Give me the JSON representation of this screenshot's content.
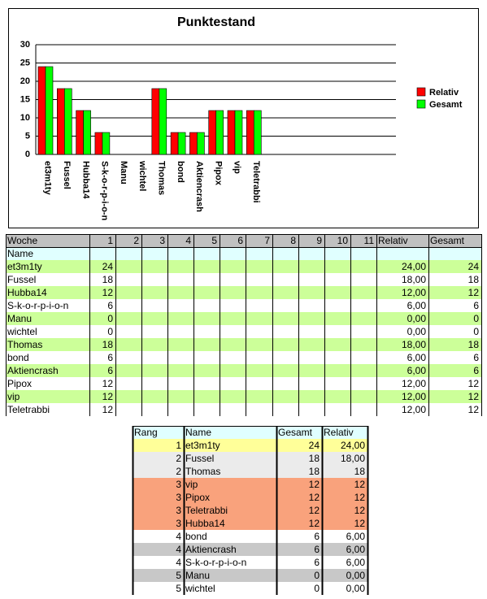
{
  "chart_data": {
    "type": "bar",
    "title": "Punktestand",
    "categories": [
      "et3m1ty",
      "Fussel",
      "Hubba14",
      "S-k-o-r-p-i-o-n",
      "Manu",
      "wichtel",
      "Thomas",
      "bond",
      "Aktiencrash",
      "Pipox",
      "vip",
      "Teletrabbi"
    ],
    "series": [
      {
        "name": "Relativ",
        "color": "#ff0000",
        "values": [
          24,
          18,
          12,
          6,
          0,
          0,
          18,
          6,
          6,
          12,
          12,
          12
        ]
      },
      {
        "name": "Gesamt",
        "color": "#00ff00",
        "values": [
          24,
          18,
          12,
          6,
          0,
          0,
          18,
          6,
          6,
          12,
          12,
          12
        ]
      }
    ],
    "ylim": [
      0,
      30
    ],
    "yticks": [
      0,
      5,
      10,
      15,
      20,
      25,
      30
    ],
    "grid": true,
    "legend": "right"
  },
  "table": {
    "header": [
      "Woche",
      1,
      2,
      3,
      4,
      5,
      6,
      7,
      8,
      9,
      10,
      11,
      "Relativ",
      "Gesamt"
    ],
    "subheader": "Name",
    "rows": [
      {
        "name": "et3m1ty",
        "week": 24,
        "relativ": "24,00",
        "gesamt": 24
      },
      {
        "name": "Fussel",
        "week": 18,
        "relativ": "18,00",
        "gesamt": 18
      },
      {
        "name": "Hubba14",
        "week": 12,
        "relativ": "12,00",
        "gesamt": 12
      },
      {
        "name": "S-k-o-r-p-i-o-n",
        "week": 6,
        "relativ": "6,00",
        "gesamt": 6
      },
      {
        "name": "Manu",
        "week": 0,
        "relativ": "0,00",
        "gesamt": 0
      },
      {
        "name": "wichtel",
        "week": 0,
        "relativ": "0,00",
        "gesamt": 0
      },
      {
        "name": "Thomas",
        "week": 18,
        "relativ": "18,00",
        "gesamt": 18
      },
      {
        "name": "bond",
        "week": 6,
        "relativ": "6,00",
        "gesamt": 6
      },
      {
        "name": "Aktiencrash",
        "week": 6,
        "relativ": "6,00",
        "gesamt": 6
      },
      {
        "name": "Pipox",
        "week": 12,
        "relativ": "12,00",
        "gesamt": 12
      },
      {
        "name": "vip",
        "week": 12,
        "relativ": "12,00",
        "gesamt": 12
      },
      {
        "name": "Teletrabbi",
        "week": 12,
        "relativ": "12,00",
        "gesamt": 12
      }
    ]
  },
  "ranking": {
    "header": [
      "Rang",
      "Name",
      "Gesamt",
      "Relativ"
    ],
    "rows": [
      [
        1,
        "et3m1ty",
        24,
        "24,00"
      ],
      [
        2,
        "Fussel",
        18,
        "18,00"
      ],
      [
        2,
        "Thomas",
        18,
        "18"
      ],
      [
        3,
        "vip",
        12,
        "12"
      ],
      [
        3,
        "Pipox",
        12,
        "12"
      ],
      [
        3,
        "Teletrabbi",
        12,
        "12"
      ],
      [
        3,
        "Hubba14",
        12,
        "12"
      ],
      [
        4,
        "bond",
        6,
        "6,00"
      ],
      [
        4,
        "Aktiencrash",
        6,
        "6,00"
      ],
      [
        4,
        "S-k-o-r-p-i-o-n",
        6,
        "6,00"
      ],
      [
        5,
        "Manu",
        0,
        "0,00"
      ],
      [
        5,
        "wichtel",
        0,
        "0,00"
      ]
    ]
  }
}
